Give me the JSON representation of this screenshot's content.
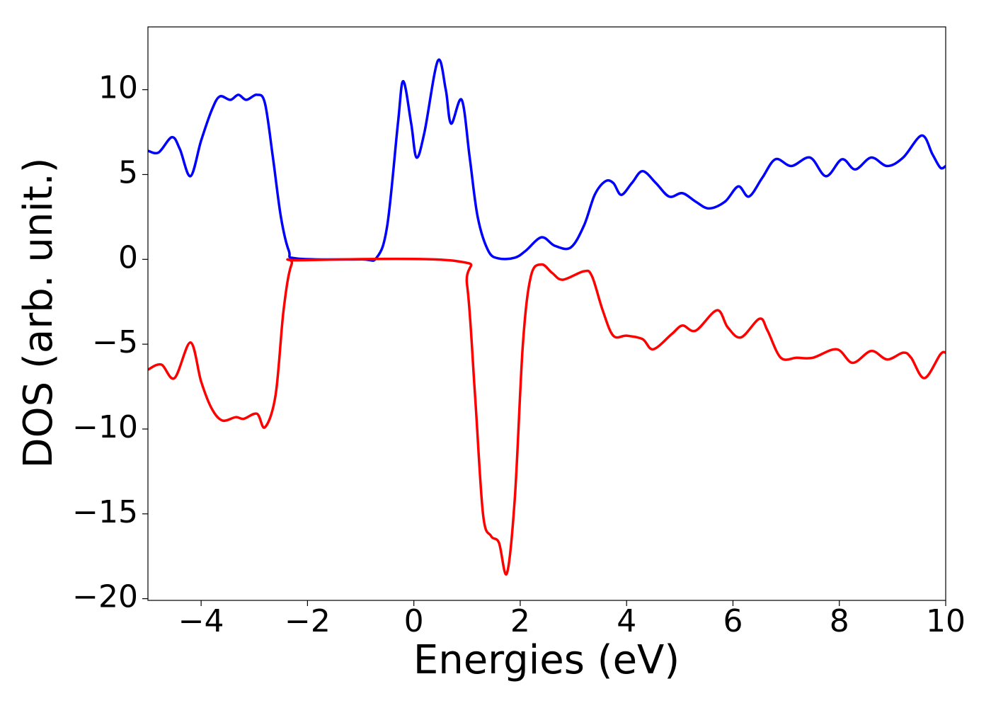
{
  "chart_data": {
    "type": "line",
    "xlabel": "Energies (eV)",
    "ylabel": "DOS (arb. unit.)",
    "xlim": [
      -5,
      10
    ],
    "ylim": [
      -20.1,
      13.7
    ],
    "xticks": [
      {
        "value": -4,
        "label": "−4"
      },
      {
        "value": -2,
        "label": "−2"
      },
      0,
      2,
      4,
      6,
      8,
      10
    ],
    "yticks": [
      {
        "value": -20,
        "label": "−20"
      },
      {
        "value": -15,
        "label": "−15"
      },
      {
        "value": -10,
        "label": "−10"
      },
      {
        "value": -5,
        "label": "−5"
      },
      0,
      5,
      10
    ],
    "grid": false,
    "series": [
      {
        "color": "#0000ff",
        "x": [
          -5,
          -4.8,
          -4.55,
          -4.4,
          -4.2,
          -4.0,
          -3.8,
          -3.65,
          -3.45,
          -3.3,
          -3.15,
          -2.95,
          -2.8,
          -2.65,
          -2.5,
          -2.35,
          -2.2,
          -1,
          -0.7,
          -0.5,
          -0.3,
          -0.2,
          -0.05,
          0.05,
          0.2,
          0.45,
          0.6,
          0.7,
          0.9,
          1.05,
          1.2,
          1.4,
          1.6,
          1.9,
          2.1,
          2.4,
          2.65,
          2.95,
          3.2,
          3.4,
          3.6,
          3.75,
          3.9,
          4.1,
          4.3,
          4.55,
          4.8,
          5.05,
          5.3,
          5.55,
          5.85,
          6.1,
          6.3,
          6.55,
          6.8,
          7.1,
          7.45,
          7.75,
          8.05,
          8.3,
          8.6,
          8.9,
          9.2,
          9.55,
          9.75,
          9.9,
          10
        ],
        "values": [
          6.4,
          6.3,
          7.2,
          6.5,
          4.9,
          7,
          8.8,
          9.6,
          9.4,
          9.7,
          9.4,
          9.7,
          9.2,
          6,
          2.5,
          0.5,
          0.05,
          0,
          0.1,
          2,
          8,
          10.5,
          8,
          6,
          7.5,
          11.7,
          10,
          8,
          9.4,
          6,
          2.5,
          0.5,
          0.05,
          0.1,
          0.5,
          1.3,
          0.8,
          0.7,
          2,
          3.8,
          4.6,
          4.5,
          3.8,
          4.5,
          5.2,
          4.5,
          3.7,
          3.9,
          3.4,
          3.0,
          3.4,
          4.3,
          3.7,
          4.8,
          5.9,
          5.5,
          6.0,
          4.9,
          5.9,
          5.3,
          6.0,
          5.5,
          6.0,
          7.3,
          6.2,
          5.4,
          5.5
        ]
      },
      {
        "color": "#ff0000",
        "x": [
          -5,
          -4.75,
          -4.5,
          -4.2,
          -4.0,
          -3.8,
          -3.6,
          -3.35,
          -3.2,
          -2.95,
          -2.8,
          -2.6,
          -2.45,
          -2.3,
          -2.1,
          0.8,
          1.0,
          1.15,
          1.3,
          1.45,
          1.6,
          1.75,
          1.9,
          2.05,
          2.2,
          2.4,
          2.6,
          2.8,
          3.2,
          3.35,
          3.55,
          3.75,
          4.0,
          4.3,
          4.5,
          4.85,
          5.05,
          5.3,
          5.7,
          5.9,
          6.15,
          6.5,
          6.65,
          6.9,
          7.2,
          7.5,
          7.95,
          8.25,
          8.6,
          8.9,
          9.2,
          9.35,
          9.6,
          9.9,
          10
        ],
        "values": [
          -6.5,
          -6.2,
          -7.0,
          -4.9,
          -7.2,
          -8.8,
          -9.5,
          -9.3,
          -9.4,
          -9.1,
          -9.9,
          -8,
          -3,
          -0.3,
          -0.05,
          -0.1,
          -1.5,
          -8,
          -15,
          -16.3,
          -16.7,
          -18.5,
          -14,
          -5,
          -1,
          -0.3,
          -0.8,
          -1.2,
          -0.7,
          -1,
          -3,
          -4.5,
          -4.5,
          -4.7,
          -5.3,
          -4.4,
          -3.9,
          -4.2,
          -3.0,
          -4.0,
          -4.6,
          -3.5,
          -4.2,
          -5.8,
          -5.8,
          -5.8,
          -5.3,
          -6.1,
          -5.4,
          -5.9,
          -5.5,
          -5.8,
          -7.0,
          -5.6,
          -5.5
        ]
      }
    ]
  }
}
